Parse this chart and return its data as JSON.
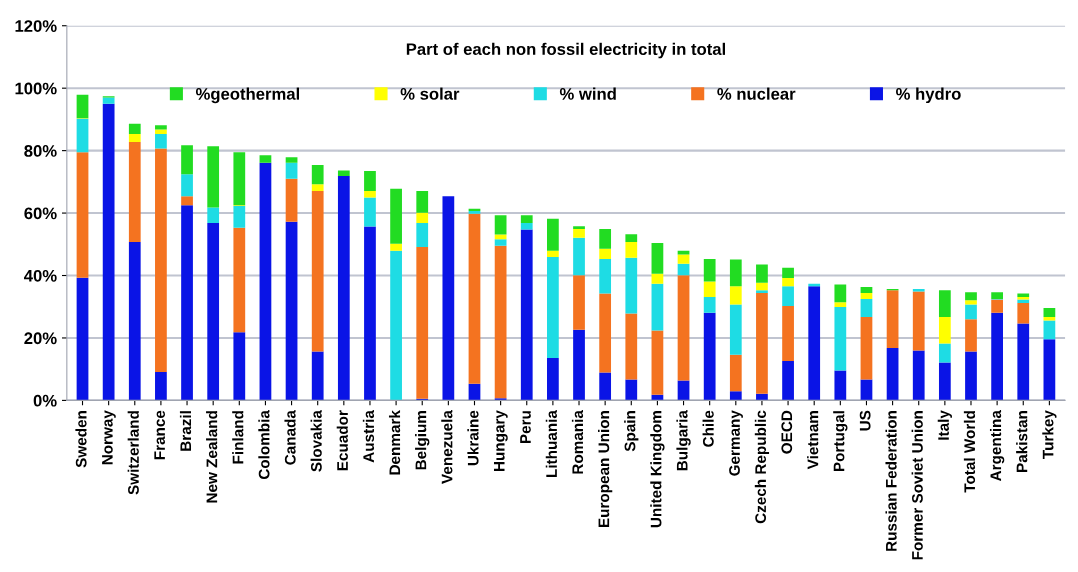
{
  "chart_data": {
    "type": "bar",
    "stacked": true,
    "title": "Part of each non fossil electricity in total",
    "categories": [
      "Sweden",
      "Norway",
      "Switzerland",
      "France",
      "Brazil",
      "New Zealand",
      "Finland",
      "Colombia",
      "Canada",
      "Slovakia",
      "Ecuador",
      "Austria",
      "Denmark",
      "Belgium",
      "Venezuela",
      "Ukraine",
      "Hungary",
      "Peru",
      "Lithuania",
      "Romania",
      "European Union",
      "Spain",
      "United Kingdom",
      "Bulgaria",
      "Chile",
      "Germany",
      "Czech Republic",
      "OECD",
      "Vietnam",
      "Portugal",
      "US",
      "Russian Federation",
      "Former Soviet Union",
      "Italy",
      "Total World",
      "Argentina",
      "Pakistan",
      "Turkey"
    ],
    "series": [
      {
        "name": "% hydro",
        "color": "#0a14e6",
        "values": [
          39.3,
          95.0,
          50.7,
          9.1,
          62.5,
          56.8,
          21.8,
          76.1,
          57.2,
          15.7,
          71.9,
          55.7,
          0,
          0.5,
          65.4,
          5.3,
          0.7,
          54.7,
          13.6,
          22.6,
          8.9,
          6.7,
          1.8,
          6.4,
          28.1,
          2.9,
          2.1,
          12.6,
          36.6,
          9.6,
          6.7,
          16.8,
          16.0,
          12.1,
          15.7,
          28.1,
          24.6,
          19.6
        ]
      },
      {
        "name": "% nuclear",
        "color": "#f47320",
        "values": [
          40.2,
          0,
          32.1,
          71.6,
          2.9,
          0,
          33.5,
          0,
          13.8,
          51.4,
          0,
          0,
          0,
          48.6,
          0,
          54.5,
          48.8,
          0,
          0,
          17.5,
          25.3,
          21.1,
          20.6,
          33.7,
          0,
          11.7,
          32.3,
          17.6,
          0,
          0,
          20.0,
          18.5,
          18.9,
          0,
          10.3,
          4.2,
          6.6,
          0
        ]
      },
      {
        "name": "% wind",
        "color": "#1edce4",
        "values": [
          10.7,
          2.0,
          0,
          4.6,
          7.0,
          5.0,
          7.0,
          0,
          5.1,
          0,
          0,
          9.3,
          47.9,
          7.7,
          0,
          0.9,
          2.1,
          2.1,
          32.3,
          12.0,
          11.1,
          17.9,
          15.0,
          3.7,
          5.0,
          16.1,
          0.9,
          6.4,
          0.8,
          20.3,
          5.8,
          0,
          0.8,
          6.1,
          4.7,
          0.2,
          1.1,
          6.0
        ]
      },
      {
        "name": "% solar",
        "color": "#ffff00",
        "values": [
          0.2,
          0,
          2.5,
          1.5,
          0,
          0,
          0.2,
          0,
          0,
          2.1,
          0,
          2.1,
          2.3,
          3.3,
          0,
          0,
          1.5,
          0,
          2.0,
          2.8,
          3.3,
          5.0,
          3.2,
          2.9,
          5.0,
          5.9,
          2.4,
          2.6,
          0,
          1.5,
          1.9,
          0,
          0,
          8.5,
          1.4,
          0,
          0.8,
          1.1
        ]
      },
      {
        "name": "%geothermal",
        "color": "#22dc22",
        "values": [
          7.5,
          0.4,
          3.3,
          1.3,
          9.3,
          19.6,
          17.0,
          2.4,
          1.8,
          6.2,
          1.7,
          6.4,
          17.6,
          7.0,
          0,
          0.7,
          6.2,
          2.5,
          10.3,
          0.9,
          6.3,
          2.5,
          9.8,
          1.2,
          7.2,
          8.5,
          5.8,
          3.3,
          0,
          5.7,
          1.9,
          0.4,
          0,
          8.6,
          2.5,
          2.1,
          1.1,
          2.9
        ]
      }
    ],
    "ylim": [
      0,
      120
    ],
    "yticks": [
      {
        "value": 0,
        "label": "0%"
      },
      {
        "value": 20,
        "label": "20%"
      },
      {
        "value": 40,
        "label": "40%"
      },
      {
        "value": 60,
        "label": "60%"
      },
      {
        "value": 80,
        "label": "80%"
      },
      {
        "value": 100,
        "label": "100%"
      },
      {
        "value": 120,
        "label": "120%"
      }
    ],
    "grid": "y",
    "legend": "top"
  }
}
